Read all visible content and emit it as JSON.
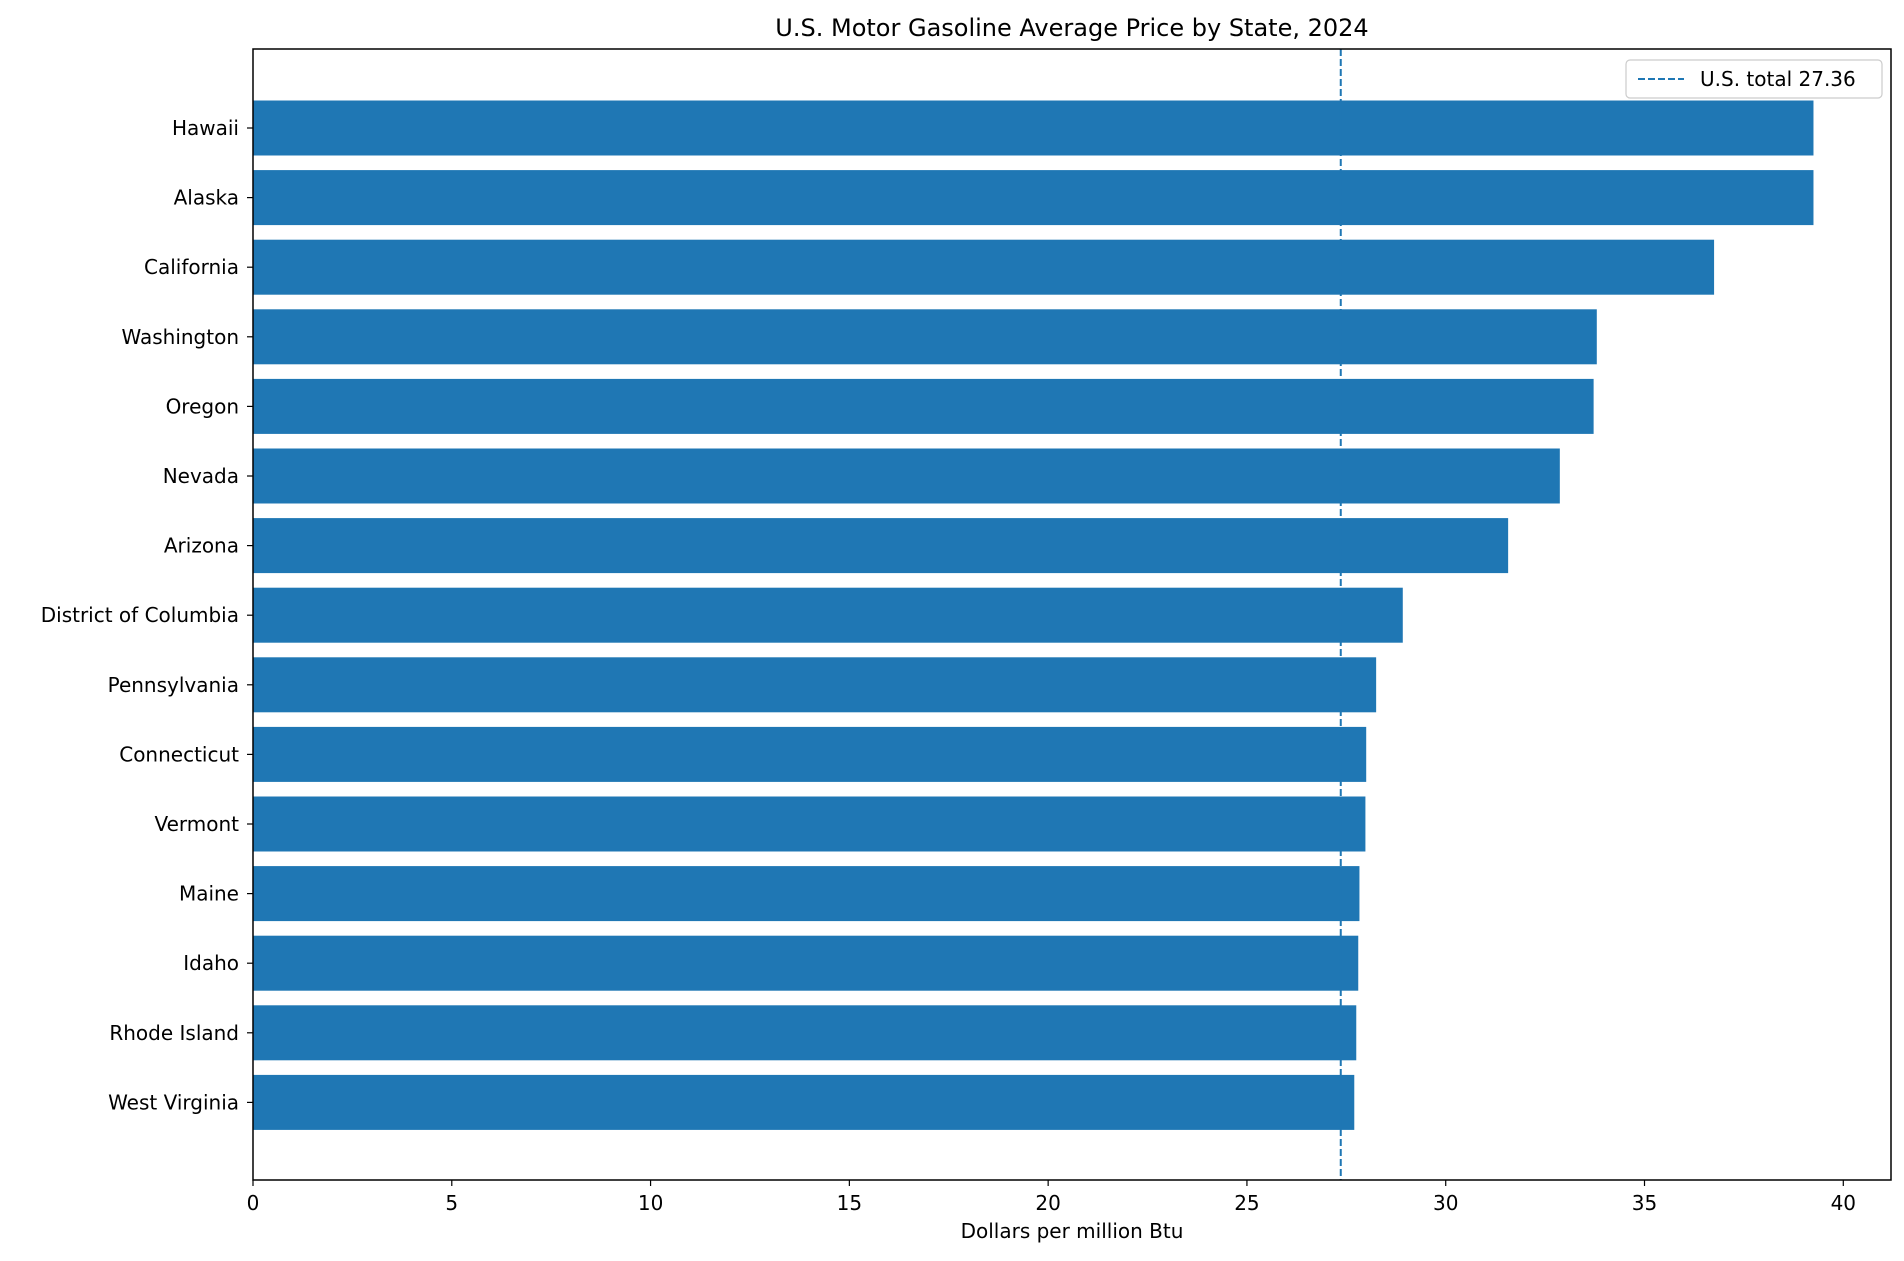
{
  "chart_data": {
    "type": "bar",
    "orientation": "horizontal",
    "title": "U.S. Motor Gasoline Average Price by State, 2024",
    "xlabel": "Dollars per million Btu",
    "ylabel": "",
    "xlim": [
      0,
      41.2
    ],
    "xticks": [
      0,
      5,
      10,
      15,
      20,
      25,
      30,
      35,
      40
    ],
    "grid": false,
    "legend_position": "top-right",
    "categories": [
      "Hawaii",
      "Alaska",
      "California",
      "Washington",
      "Oregon",
      "Nevada",
      "Arizona",
      "District of Columbia",
      "Pennsylvania",
      "Connecticut",
      "Vermont",
      "Maine",
      "Idaho",
      "Rhode Island",
      "West Virginia"
    ],
    "values": [
      39.25,
      39.25,
      36.75,
      33.8,
      33.72,
      32.87,
      31.57,
      28.92,
      28.25,
      28.0,
      27.98,
      27.83,
      27.8,
      27.75,
      27.7
    ],
    "bar_color": "#1f77b4",
    "reference_line": {
      "value": 27.36,
      "label": "U.S. total 27.36",
      "style": "dashed",
      "color": "#1f77b4"
    }
  }
}
